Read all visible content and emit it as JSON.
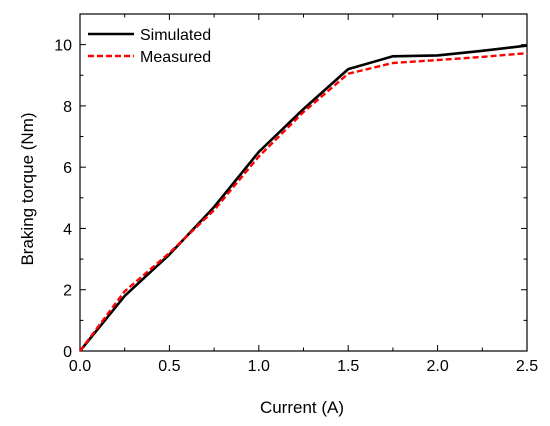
{
  "chart_data": {
    "type": "line",
    "xlabel": "Current (A)",
    "ylabel": "Braking torque (Nm)",
    "xlim": [
      0.0,
      2.5
    ],
    "ylim": [
      0,
      11
    ],
    "x_ticks": [
      "0.0",
      "0.5",
      "1.0",
      "1.5",
      "2.0",
      "2.5"
    ],
    "y_ticks": [
      "0",
      "2",
      "4",
      "6",
      "8",
      "10"
    ],
    "grid": false,
    "legend_position": "top-left",
    "series": [
      {
        "name": "Simulated",
        "color": "#000000",
        "style": "solid",
        "x": [
          0.0,
          0.25,
          0.5,
          0.75,
          1.0,
          1.25,
          1.5,
          1.75,
          2.0,
          2.25,
          2.5
        ],
        "y": [
          0.0,
          1.8,
          3.15,
          4.7,
          6.5,
          7.9,
          9.2,
          9.62,
          9.65,
          9.8,
          9.97
        ]
      },
      {
        "name": "Measured",
        "color": "#ff0000",
        "style": "dashed",
        "x": [
          0.0,
          0.25,
          0.5,
          0.75,
          1.0,
          1.25,
          1.5,
          1.75,
          2.0,
          2.25,
          2.5
        ],
        "y": [
          0.0,
          1.95,
          3.2,
          4.6,
          6.35,
          7.8,
          9.05,
          9.4,
          9.5,
          9.6,
          9.72
        ]
      }
    ]
  }
}
